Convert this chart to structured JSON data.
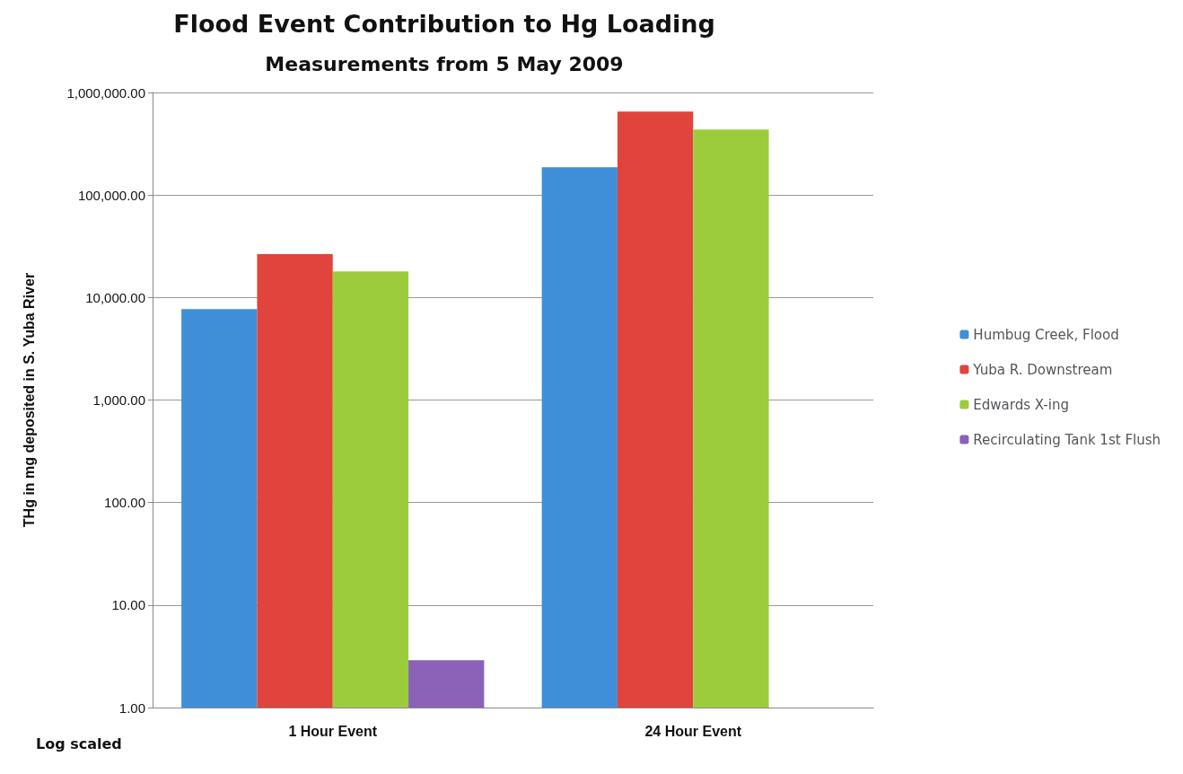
{
  "chart_data": {
    "type": "bar",
    "title": "Flood Event Contribution to Hg Loading",
    "subtitle": "Measurements from 5 May 2009",
    "ylabel": "THg in mg deposited in S. Yuba River",
    "categories": [
      "1 Hour Event",
      "24 Hour Event"
    ],
    "series": [
      {
        "name": "Humbug Creek, Flood",
        "color": "#3f8fd8",
        "values": [
          7700,
          187000
        ]
      },
      {
        "name": "Yuba R. Downstream",
        "color": "#e0443c",
        "values": [
          26500,
          650000
        ]
      },
      {
        "name": "Edwards X-ing",
        "color": "#9ccc3c",
        "values": [
          18000,
          435000
        ]
      },
      {
        "name": "Recirculating Tank 1st Flush",
        "color": "#8a62b8",
        "values": [
          2.9,
          null
        ]
      }
    ],
    "log": "y",
    "ylim": [
      1,
      1000000
    ],
    "yticks": [
      {
        "value": 1,
        "label": "1.00"
      },
      {
        "value": 10,
        "label": "10.00"
      },
      {
        "value": 100,
        "label": "100.00"
      },
      {
        "value": 1000,
        "label": "1,000.00"
      },
      {
        "value": 10000,
        "label": "10,000.00"
      },
      {
        "value": 100000,
        "label": "100,000.00"
      },
      {
        "value": 1000000,
        "label": "1,000,000.00"
      }
    ],
    "grid": "y",
    "legend": "right",
    "annotations": [
      "Log scaled"
    ]
  }
}
